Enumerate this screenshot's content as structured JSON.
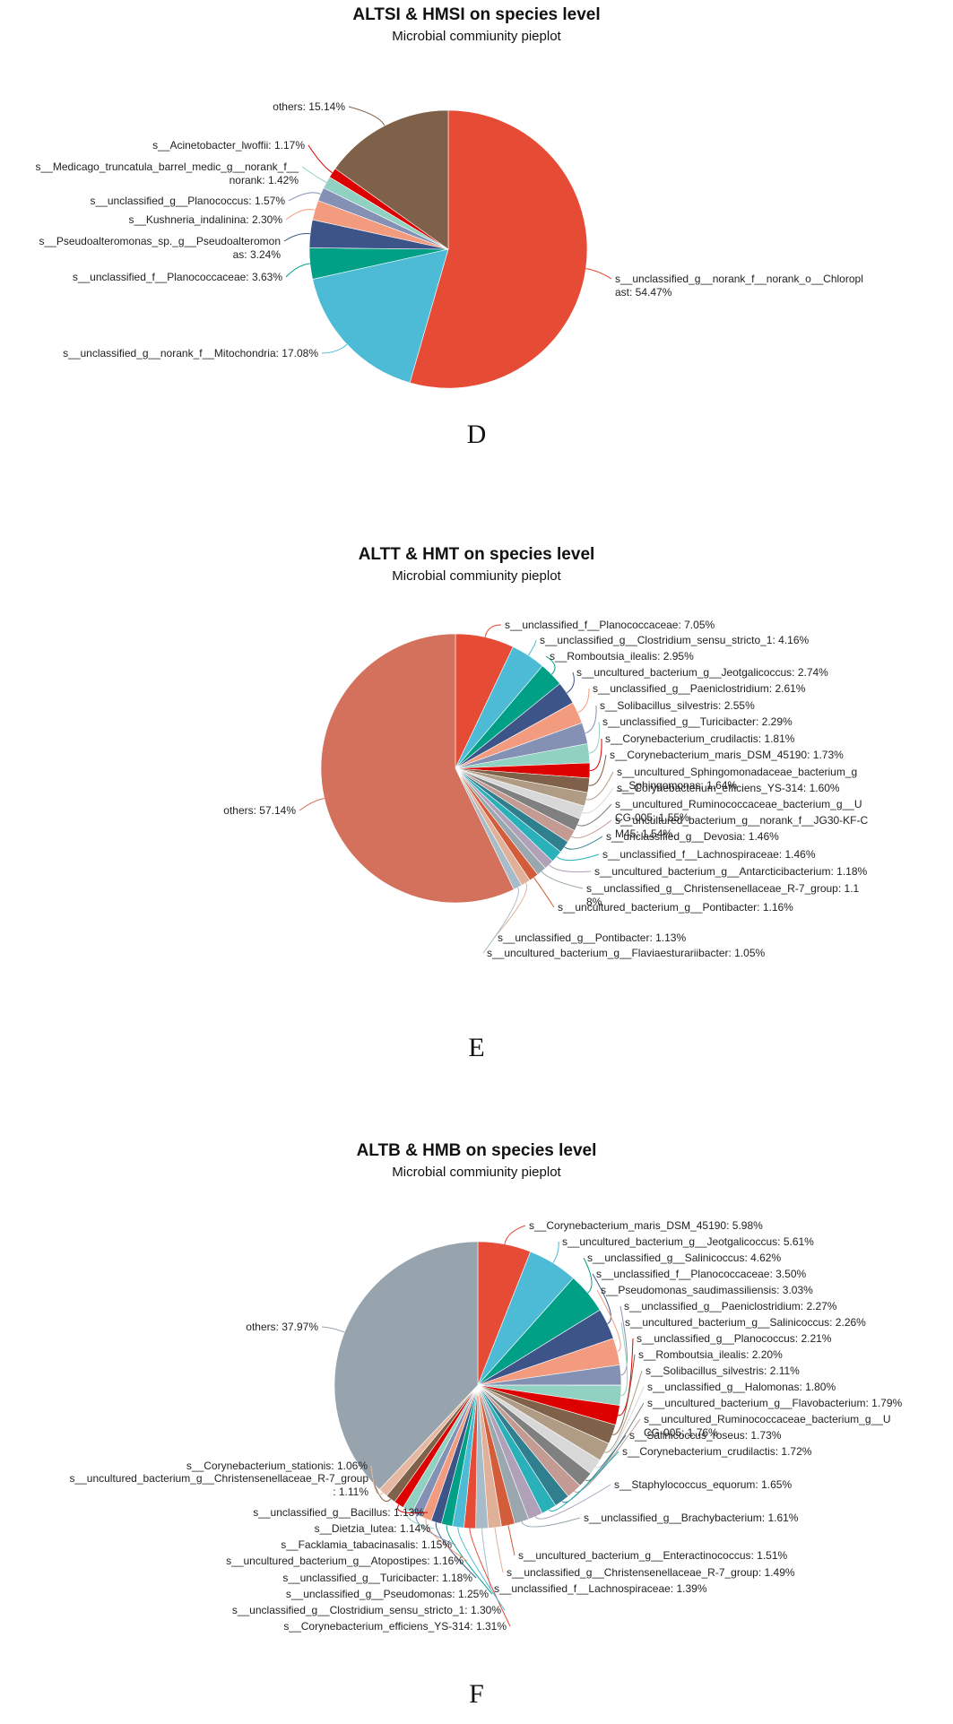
{
  "chart_data": [
    {
      "type": "pie",
      "title": "ALTSI & HMSI on species level",
      "subtitle": "Microbial commiunity pieplot",
      "panel_letter": "D",
      "slices": [
        {
          "label": "s__unclassified_g__norank_f__norank_o__Chloroplast",
          "value": 54.47,
          "color": "#e64b35",
          "text": [
            "s__unclassified_g__norank_f__norank_o__Chloropl",
            "ast: 54.47%"
          ]
        },
        {
          "label": "s__unclassified_g__norank_f__Mitochondria",
          "value": 17.08,
          "color": "#4dbbd5",
          "text": [
            "s__unclassified_g__norank_f__Mitochondria: 17.08%"
          ]
        },
        {
          "label": "s__unclassified_f__Planococcaceae",
          "value": 3.63,
          "color": "#00a087",
          "text": [
            "s__unclassified_f__Planococcaceae: 3.63%"
          ]
        },
        {
          "label": "s__Pseudoalteromonas_sp._g__Pseudoalteromonas",
          "value": 3.24,
          "color": "#3c5488",
          "text": [
            "s__Pseudoalteromonas_sp._g__Pseudoalteromon",
            "as: 3.24%"
          ]
        },
        {
          "label": "s__Kushneria_indalinina",
          "value": 2.3,
          "color": "#f39b7f",
          "text": [
            "s__Kushneria_indalinina: 2.30%"
          ]
        },
        {
          "label": "s__unclassified_g__Planococcus",
          "value": 1.57,
          "color": "#8491b4",
          "text": [
            "s__unclassified_g__Planococcus: 1.57%"
          ]
        },
        {
          "label": "s__Medicago_truncatula_barrel_medic_g__norank_f__norank",
          "value": 1.42,
          "color": "#91d1c2",
          "text": [
            "s__Medicago_truncatula_barrel_medic_g__norank_f__",
            "norank: 1.42%"
          ]
        },
        {
          "label": "s__Acinetobacter_lwoffii",
          "value": 1.17,
          "color": "#dc0000",
          "text": [
            "s__Acinetobacter_lwoffii: 1.17%"
          ]
        },
        {
          "label": "others",
          "value": 15.14,
          "color": "#7e6148",
          "text": [
            "others: 15.14%"
          ]
        }
      ]
    },
    {
      "type": "pie",
      "title": "ALTT & HMT on species level",
      "subtitle": "Microbial commiunity pieplot",
      "panel_letter": "E",
      "slices": [
        {
          "label": "s__unclassified_f__Planococcaceae",
          "value": 7.05,
          "color": "#e64b35",
          "text": [
            "s__unclassified_f__Planococcaceae: 7.05%"
          ]
        },
        {
          "label": "s__unclassified_g__Clostridium_sensu_stricto_1",
          "value": 4.16,
          "color": "#4dbbd5",
          "text": [
            "s__unclassified_g__Clostridium_sensu_stricto_1: 4.16%"
          ]
        },
        {
          "label": "s__Romboutsia_ilealis",
          "value": 2.95,
          "color": "#00a087",
          "text": [
            "s__Romboutsia_ilealis: 2.95%"
          ]
        },
        {
          "label": "s__uncultured_bacterium_g__Jeotgalicoccus",
          "value": 2.74,
          "color": "#3c5488",
          "text": [
            "s__uncultured_bacterium_g__Jeotgalicoccus: 2.74%"
          ]
        },
        {
          "label": "s__unclassified_g__Paeniclostridium",
          "value": 2.61,
          "color": "#f39b7f",
          "text": [
            "s__unclassified_g__Paeniclostridium: 2.61%"
          ]
        },
        {
          "label": "s__Solibacillus_silvestris",
          "value": 2.55,
          "color": "#8491b4",
          "text": [
            "s__Solibacillus_silvestris: 2.55%"
          ]
        },
        {
          "label": "s__unclassified_g__Turicibacter",
          "value": 2.29,
          "color": "#91d1c2",
          "text": [
            "s__unclassified_g__Turicibacter: 2.29%"
          ]
        },
        {
          "label": "s__Corynebacterium_crudilactis",
          "value": 1.81,
          "color": "#dc0000",
          "text": [
            "s__Corynebacterium_crudilactis: 1.81%"
          ]
        },
        {
          "label": "s__Corynebacterium_maris_DSM_45190",
          "value": 1.73,
          "color": "#7e6148",
          "text": [
            "s__Corynebacterium_maris_DSM_45190: 1.73%"
          ]
        },
        {
          "label": "s__uncultured_Sphingomonadaceae_bacterium_g__Sphingomonas",
          "value": 1.64,
          "color": "#b09c85",
          "text": [
            "s__uncultured_Sphingomonadaceae_bacterium_g",
            "__Sphingomonas: 1.64%"
          ]
        },
        {
          "label": "s__Corynebacterium_efficiens_YS-314",
          "value": 1.6,
          "color": "#d8d8d8",
          "text": [
            "s__Corynebacterium_efficiens_YS-314: 1.60%"
          ]
        },
        {
          "label": "s__uncultured_Ruminococcaceae_bacterium_g__UCG-005",
          "value": 1.55,
          "color": "#808080",
          "text": [
            "s__uncultured_Ruminococcaceae_bacterium_g__U",
            "CG-005: 1.55%"
          ]
        },
        {
          "label": "s__uncultured_bacterium_g__norank_f__JG30-KF-CM45",
          "value": 1.54,
          "color": "#c39b93",
          "text": [
            "s__uncultured_bacterium_g__norank_f__JG30-KF-C",
            "M45: 1.54%"
          ]
        },
        {
          "label": "s__unclassified_g__Devosia",
          "value": 1.46,
          "color": "#2f7f8f",
          "text": [
            "s__unclassified_g__Devosia: 1.46%"
          ]
        },
        {
          "label": "s__unclassified_f__Lachnospiraceae",
          "value": 1.46,
          "color": "#2ab0b8",
          "text": [
            "s__unclassified_f__Lachnospiraceae: 1.46%"
          ]
        },
        {
          "label": "s__uncultured_bacterium_g__Antarcticibacterium",
          "value": 1.18,
          "color": "#b0a0b8",
          "text": [
            "s__uncultured_bacterium_g__Antarcticibacterium: 1.18%"
          ]
        },
        {
          "label": "s__unclassified_g__Christensenellaceae_R-7_group",
          "value": 1.18,
          "color": "#9aa7ae",
          "text": [
            "s__unclassified_g__Christensenellaceae_R-7_group: 1.1",
            "8%"
          ]
        },
        {
          "label": "s__uncultured_bacterium_g__Pontibacter",
          "value": 1.16,
          "color": "#d35d3a",
          "text": [
            "s__uncultured_bacterium_g__Pontibacter: 1.16%"
          ]
        },
        {
          "label": "s__unclassified_g__Pontibacter",
          "value": 1.13,
          "color": "#e0b098",
          "text": [
            "s__unclassified_g__Pontibacter: 1.13%"
          ]
        },
        {
          "label": "s__uncultured_bacterium_g__Flaviaesturariibacter",
          "value": 1.05,
          "color": "#a7bcc8",
          "text": [
            "s__uncultured_bacterium_g__Flaviaesturariibacter: 1.05%"
          ]
        },
        {
          "label": "others",
          "value": 57.14,
          "color": "#d4715c",
          "text": [
            "others: 57.14%"
          ]
        }
      ]
    },
    {
      "type": "pie",
      "title": "ALTB & HMB on species level",
      "subtitle": "Microbial commiunity pieplot",
      "panel_letter": "F",
      "slices": [
        {
          "label": "s__Corynebacterium_maris_DSM_45190",
          "value": 5.98,
          "color": "#e64b35",
          "text": [
            "s__Corynebacterium_maris_DSM_45190: 5.98%"
          ]
        },
        {
          "label": "s__uncultured_bacterium_g__Jeotgalicoccus",
          "value": 5.61,
          "color": "#4dbbd5",
          "text": [
            "s__uncultured_bacterium_g__Jeotgalicoccus: 5.61%"
          ]
        },
        {
          "label": "s__unclassified_g__Salinicoccus",
          "value": 4.62,
          "color": "#00a087",
          "text": [
            "s__unclassified_g__Salinicoccus: 4.62%"
          ]
        },
        {
          "label": "s__unclassified_f__Planococcaceae",
          "value": 3.5,
          "color": "#3c5488",
          "text": [
            "s__unclassified_f__Planococcaceae: 3.50%"
          ]
        },
        {
          "label": "s__Pseudomonas_saudimassiliensis",
          "value": 3.03,
          "color": "#f39b7f",
          "text": [
            "s__Pseudomonas_saudimassiliensis: 3.03%"
          ]
        },
        {
          "label": "s__unclassified_g__Paeniclostridium",
          "value": 2.27,
          "color": "#8491b4",
          "text": [
            "s__unclassified_g__Paeniclostridium: 2.27%"
          ]
        },
        {
          "label": "s__uncultured_bacterium_g__Salinicoccus",
          "value": 2.26,
          "color": "#91d1c2",
          "text": [
            "s__uncultured_bacterium_g__Salinicoccus: 2.26%"
          ]
        },
        {
          "label": "s__unclassified_g__Planococcus",
          "value": 2.21,
          "color": "#dc0000",
          "text": [
            "s__unclassified_g__Planococcus: 2.21%"
          ]
        },
        {
          "label": "s__Romboutsia_ilealis",
          "value": 2.2,
          "color": "#7e6148",
          "text": [
            "s__Romboutsia_ilealis: 2.20%"
          ]
        },
        {
          "label": "s__Solibacillus_silvestris",
          "value": 2.11,
          "color": "#b09c85",
          "text": [
            "s__Solibacillus_silvestris: 2.11%"
          ]
        },
        {
          "label": "s__unclassified_g__Halomonas",
          "value": 1.8,
          "color": "#d8d8d8",
          "text": [
            "s__unclassified_g__Halomonas: 1.80%"
          ]
        },
        {
          "label": "s__uncultured_bacterium_g__Flavobacterium",
          "value": 1.79,
          "color": "#808080",
          "text": [
            "s__uncultured_bacterium_g__Flavobacterium: 1.79%"
          ]
        },
        {
          "label": "s__uncultured_Ruminococcaceae_bacterium_g__UCG-005",
          "value": 1.76,
          "color": "#c39b93",
          "text": [
            "s__uncultured_Ruminococcaceae_bacterium_g__U",
            "CG-005: 1.76%"
          ]
        },
        {
          "label": "s__Salinicoccus_roseus",
          "value": 1.73,
          "color": "#2f7f8f",
          "text": [
            "s__Salinicoccus_roseus: 1.73%"
          ]
        },
        {
          "label": "s__Corynebacterium_crudilactis",
          "value": 1.72,
          "color": "#2ab0b8",
          "text": [
            "s__Corynebacterium_crudilactis: 1.72%"
          ]
        },
        {
          "label": "s__Staphylococcus_equorum",
          "value": 1.65,
          "color": "#b0a0b8",
          "text": [
            "s__Staphylococcus_equorum: 1.65%"
          ]
        },
        {
          "label": "s__unclassified_g__Brachybacterium",
          "value": 1.61,
          "color": "#9aa7ae",
          "text": [
            "s__unclassified_g__Brachybacterium: 1.61%"
          ]
        },
        {
          "label": "s__uncultured_bacterium_g__Enteractinococcus",
          "value": 1.51,
          "color": "#d35d3a",
          "text": [
            "s__uncultured_bacterium_g__Enteractinococcus: 1.51%"
          ]
        },
        {
          "label": "s__unclassified_g__Christensenellaceae_R-7_group",
          "value": 1.49,
          "color": "#e0b098",
          "text": [
            "s__unclassified_g__Christensenellaceae_R-7_group: 1.49%"
          ]
        },
        {
          "label": "s__unclassified_f__Lachnospiraceae",
          "value": 1.39,
          "color": "#a7bcc8",
          "text": [
            "s__unclassified_f__Lachnospiraceae: 1.39%"
          ]
        },
        {
          "label": "s__Corynebacterium_efficiens_YS-314",
          "value": 1.31,
          "color": "#e64b35",
          "text": [
            "s__Corynebacterium_efficiens_YS-314: 1.31%"
          ]
        },
        {
          "label": "s__unclassified_g__Clostridium_sensu_stricto_1",
          "value": 1.3,
          "color": "#4dbbd5",
          "text": [
            "s__unclassified_g__Clostridium_sensu_stricto_1: 1.30%"
          ]
        },
        {
          "label": "s__unclassified_g__Pseudomonas",
          "value": 1.25,
          "color": "#00a087",
          "text": [
            "s__unclassified_g__Pseudomonas: 1.25%"
          ]
        },
        {
          "label": "s__unclassified_g__Turicibacter",
          "value": 1.18,
          "color": "#3c5488",
          "text": [
            "s__unclassified_g__Turicibacter: 1.18%"
          ]
        },
        {
          "label": "s__uncultured_bacterium_g__Atopostipes",
          "value": 1.16,
          "color": "#f39b7f",
          "text": [
            "s__uncultured_bacterium_g__Atopostipes: 1.16%"
          ]
        },
        {
          "label": "s__Facklamia_tabacinasalis",
          "value": 1.15,
          "color": "#8491b4",
          "text": [
            "s__Facklamia_tabacinasalis: 1.15%"
          ]
        },
        {
          "label": "s__Dietzia_lutea",
          "value": 1.14,
          "color": "#91d1c2",
          "text": [
            "s__Dietzia_lutea: 1.14%"
          ]
        },
        {
          "label": "s__unclassified_g__Bacillus",
          "value": 1.13,
          "color": "#dc0000",
          "text": [
            "s__unclassified_g__Bacillus: 1.13%"
          ]
        },
        {
          "label": "s__uncultured_bacterium_g__Christensenellaceae_R-7_group",
          "value": 1.11,
          "color": "#7e6148",
          "text": [
            "s__uncultured_bacterium_g__Christensenellaceae_R-7_group",
            ": 1.11%"
          ]
        },
        {
          "label": "s__Corynebacterium_stationis",
          "value": 1.06,
          "color": "#e6b8a2",
          "text": [
            "s__Corynebacterium_stationis: 1.06%"
          ]
        },
        {
          "label": "others",
          "value": 37.97,
          "color": "#98a4ad",
          "text": [
            "others: 37.97%"
          ]
        }
      ]
    }
  ]
}
